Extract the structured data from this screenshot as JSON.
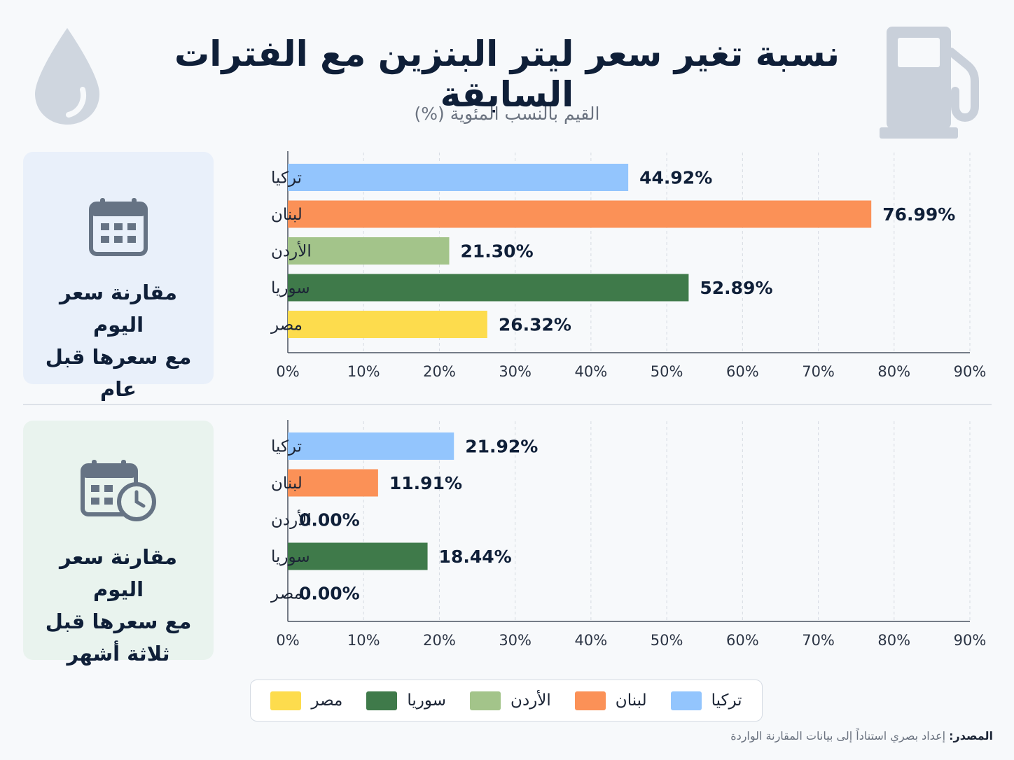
{
  "header": {
    "title": "نسبة تغير سعر ليتر البنزين مع الفترات السابقة",
    "subtitle": "القيم بالنسب المئوية (%)"
  },
  "icons": {
    "drop": "water-drop-icon",
    "pump": "fuel-pump-icon",
    "calendar": "calendar-icon",
    "calendar_clock": "calendar-clock-icon"
  },
  "panels": {
    "top_label_line1": "مقارنة سعر اليوم",
    "top_label_line2": "مع سعرها قبل عام",
    "bottom_label_line1": "مقارنة سعر اليوم",
    "bottom_label_line2": "مع سعرها قبل",
    "bottom_label_line3": "ثلاثة أشهر"
  },
  "colors": {
    "تركيا": "#93c5fd",
    "لبنان": "#fb9157",
    "الأردن": "#a3c48a",
    "سوريا": "#3f7a4a",
    "مصر": "#fddc4d",
    "panel_top_bg": "#e9f0fa",
    "panel_bottom_bg": "#e9f3ee",
    "icon_gray": "#667384"
  },
  "chart_data": [
    {
      "type": "bar",
      "orientation": "horizontal",
      "categories": [
        "تركيا",
        "لبنان",
        "الأردن",
        "سوريا",
        "مصر"
      ],
      "values": [
        44.92,
        76.99,
        21.3,
        52.89,
        26.32
      ],
      "value_labels": [
        "44.92%",
        "76.99%",
        "21.30%",
        "52.89%",
        "26.32%"
      ],
      "xlim": [
        0,
        90
      ],
      "xticks": [
        "0%",
        "10%",
        "20%",
        "30%",
        "40%",
        "50%",
        "60%",
        "70%",
        "80%",
        "90%"
      ],
      "grid": true
    },
    {
      "type": "bar",
      "orientation": "horizontal",
      "categories": [
        "تركيا",
        "لبنان",
        "الأردن",
        "سوريا",
        "مصر"
      ],
      "values": [
        21.92,
        11.91,
        0.0,
        18.44,
        0.0
      ],
      "value_labels": [
        "21.92%",
        "11.91%",
        "0.00%",
        "18.44%",
        "0.00%"
      ],
      "xlim": [
        0,
        90
      ],
      "xticks": [
        "0%",
        "10%",
        "20%",
        "30%",
        "40%",
        "50%",
        "60%",
        "70%",
        "80%",
        "90%"
      ],
      "grid": true
    }
  ],
  "legend": {
    "items": [
      "تركيا",
      "لبنان",
      "الأردن",
      "سوريا",
      "مصر"
    ],
    "position": "bottom-center"
  },
  "footer": {
    "source_key": "المصدر:",
    "source_text": " إعداد بصري استناداً إلى بيانات المقارنة الواردة"
  }
}
